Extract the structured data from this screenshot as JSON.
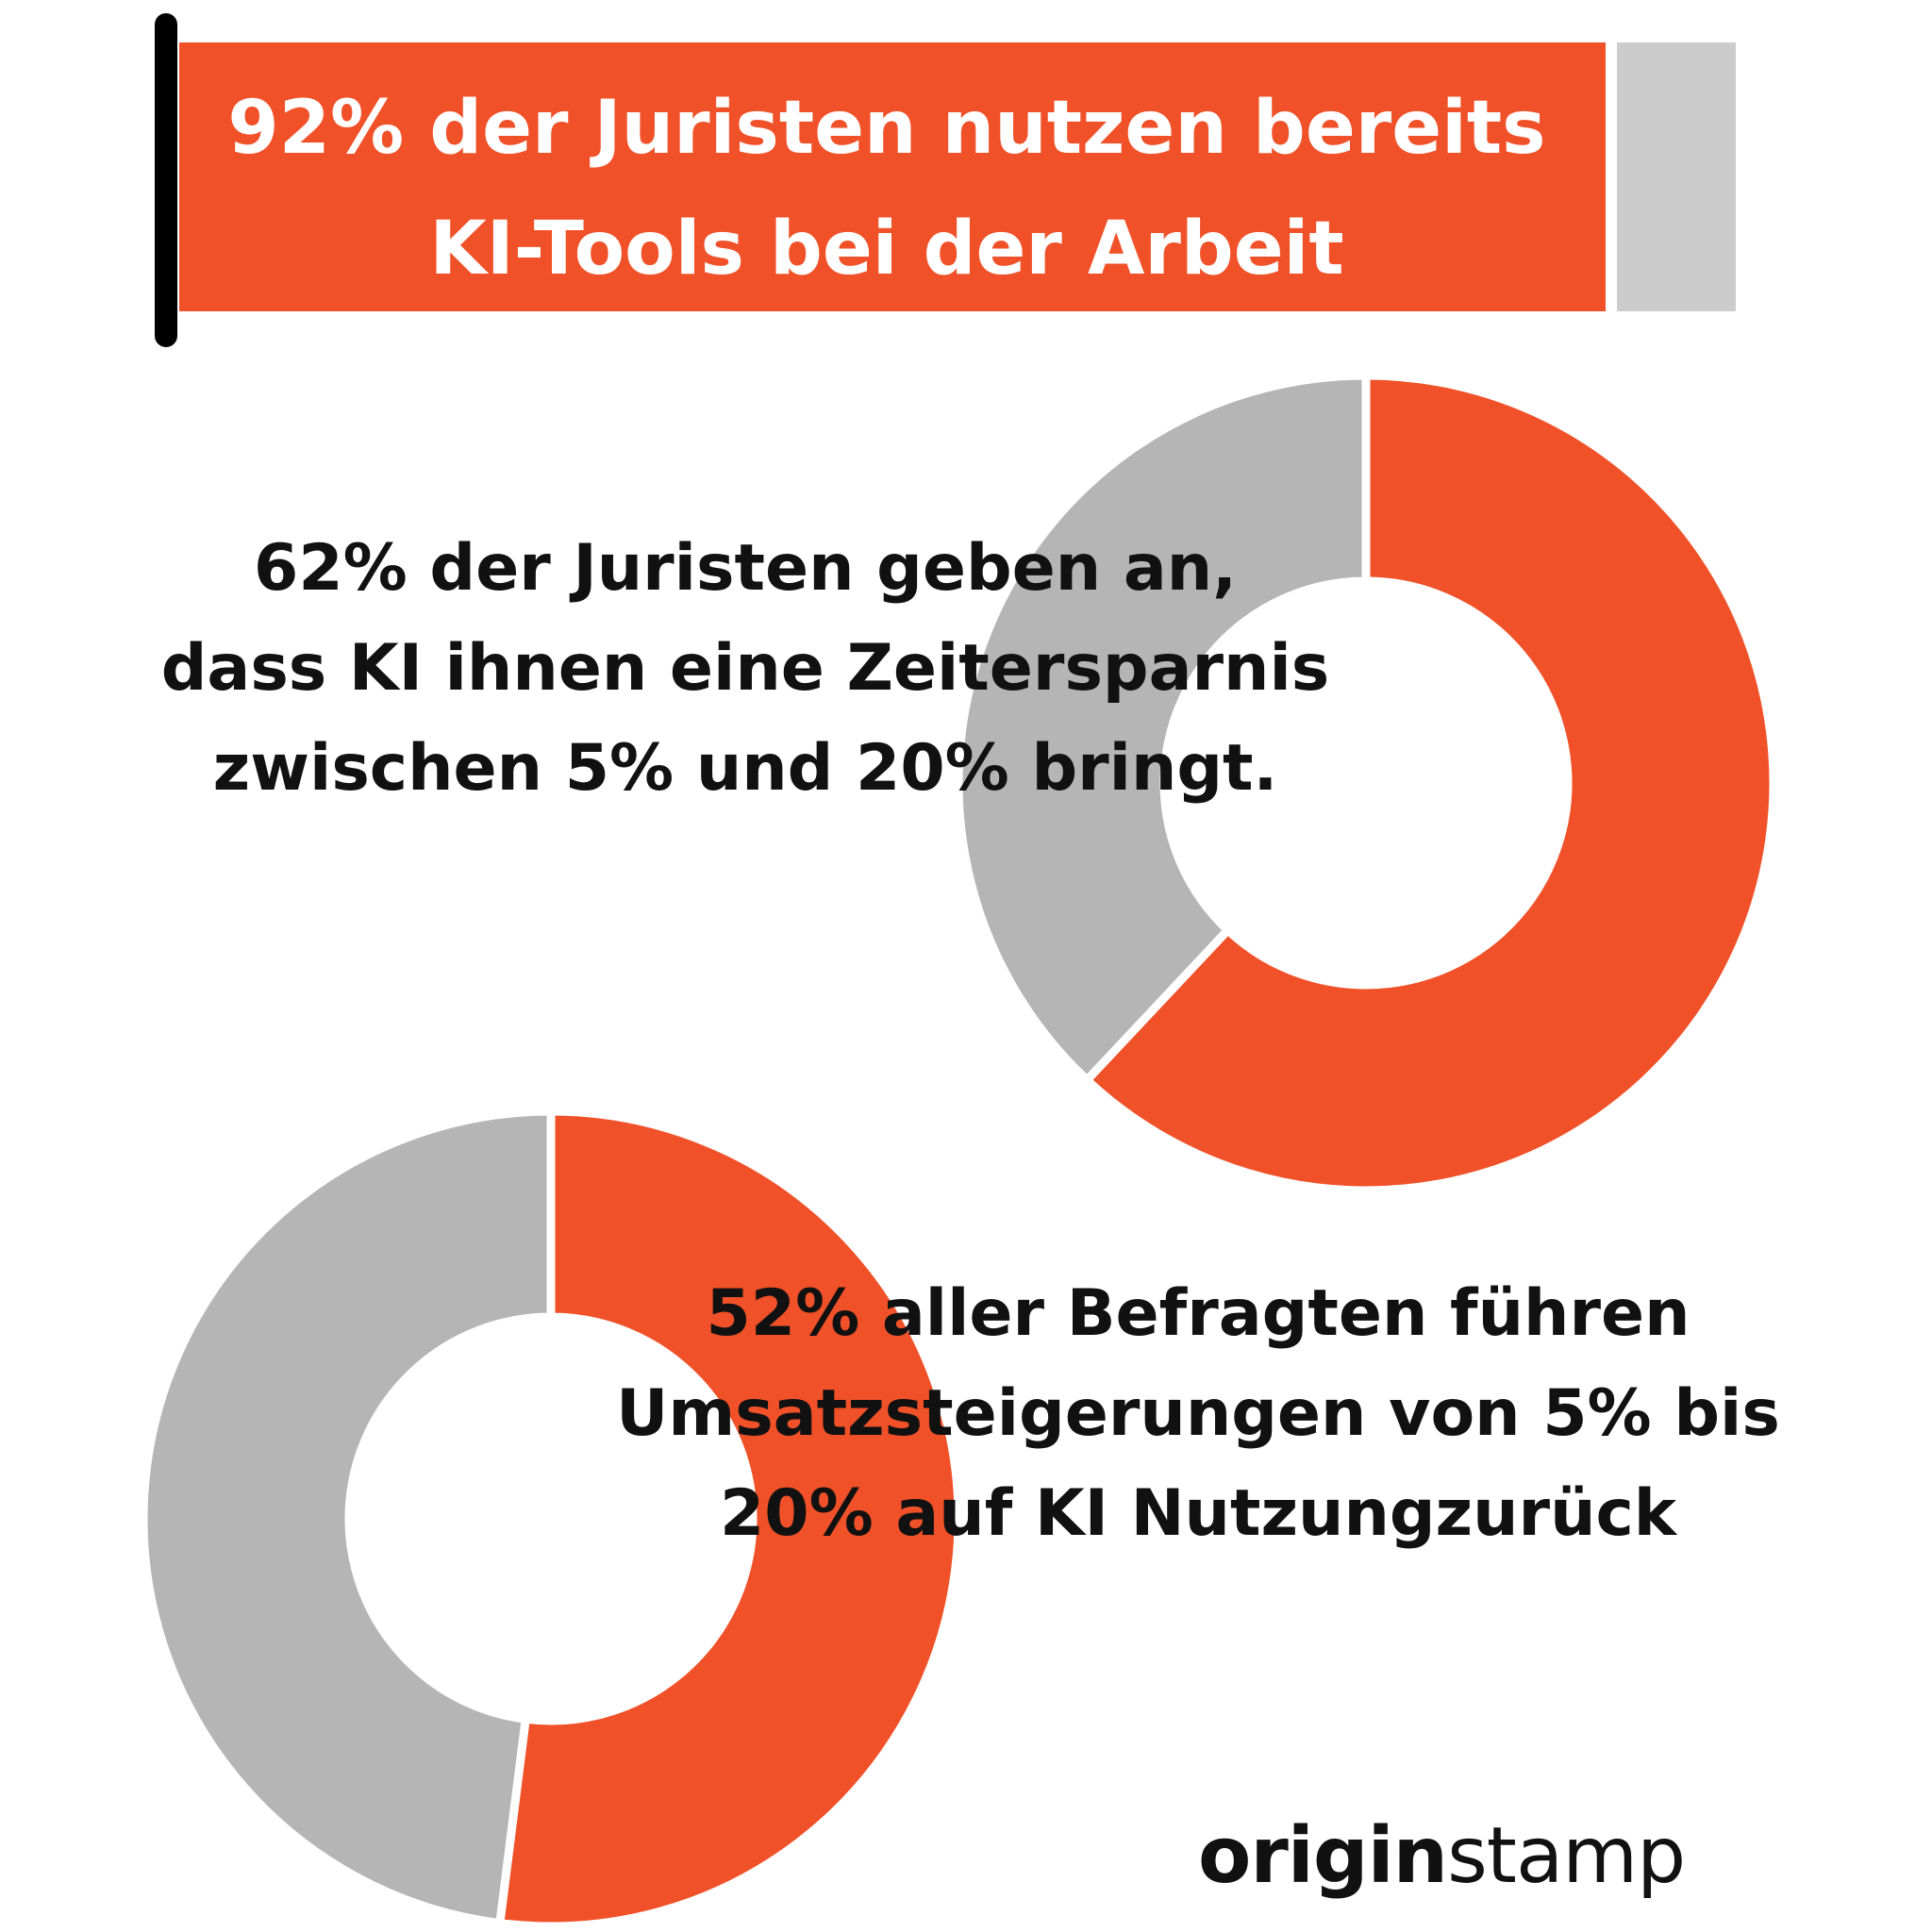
{
  "colors": {
    "accent": "#F05128",
    "bar_remainder": "#CCCCCC",
    "donut_remainder": "#B5B5B5",
    "text": "#111111",
    "marker": "#000000"
  },
  "headline": {
    "line1": "92% der Juristen nutzen bereits",
    "line2": "KI-Tools bei der Arbeit"
  },
  "stat_1": {
    "line1": "62% der Juristen geben an,",
    "line2": "dass KI ihnen eine Zeitersparnis",
    "line3": "zwischen 5% und 20% bringt."
  },
  "stat_2": {
    "line1": "52% aller Befragten führen",
    "line2": "Umsatzsteigerungen von 5% bis",
    "line3": "20% auf KI Nutzungzurück"
  },
  "logo": {
    "bold": "origin",
    "light": "stamp"
  },
  "chart_data": [
    {
      "type": "bar",
      "orientation": "horizontal",
      "value": 92,
      "max": 100,
      "title": "92% der Juristen nutzen bereits KI-Tools bei der Arbeit"
    },
    {
      "type": "pie",
      "donut": true,
      "slices": [
        {
          "value": 62,
          "color": "#F05128"
        },
        {
          "value": 38,
          "color": "#B5B5B5"
        }
      ],
      "annotation": "62% der Juristen geben an, dass KI ihnen eine Zeitersparnis zwischen 5% und 20% bringt."
    },
    {
      "type": "pie",
      "donut": true,
      "slices": [
        {
          "value": 52,
          "color": "#F05128"
        },
        {
          "value": 48,
          "color": "#B5B5B5"
        }
      ],
      "annotation": "52% aller Befragten führen Umsatzsteigerungen von 5% bis 20% auf KI Nutzungzurück"
    }
  ]
}
